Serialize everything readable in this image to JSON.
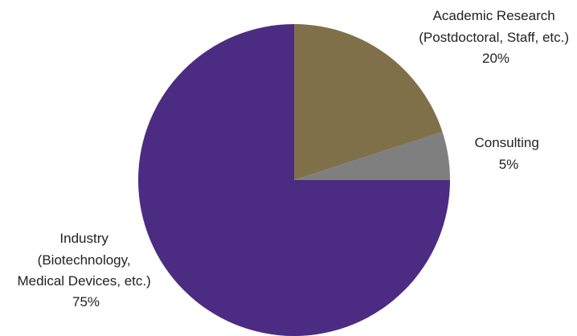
{
  "chart_data": {
    "type": "pie",
    "start_angle_deg": 0,
    "direction": "clockwise",
    "slices": [
      {
        "label_lines": [
          "Academic Research",
          "(Postdoctoral, Staff, etc.)"
        ],
        "value": 20,
        "value_label": "20%",
        "color": "#7f704a"
      },
      {
        "label_lines": [
          "Consulting"
        ],
        "value": 5,
        "value_label": "5%",
        "color": "#7f7f7f"
      },
      {
        "label_lines": [
          "Industry",
          "(Biotechnology,",
          "Medical Devices, etc.)"
        ],
        "value": 75,
        "value_label": "75%",
        "color": "#4b2c82"
      }
    ]
  }
}
